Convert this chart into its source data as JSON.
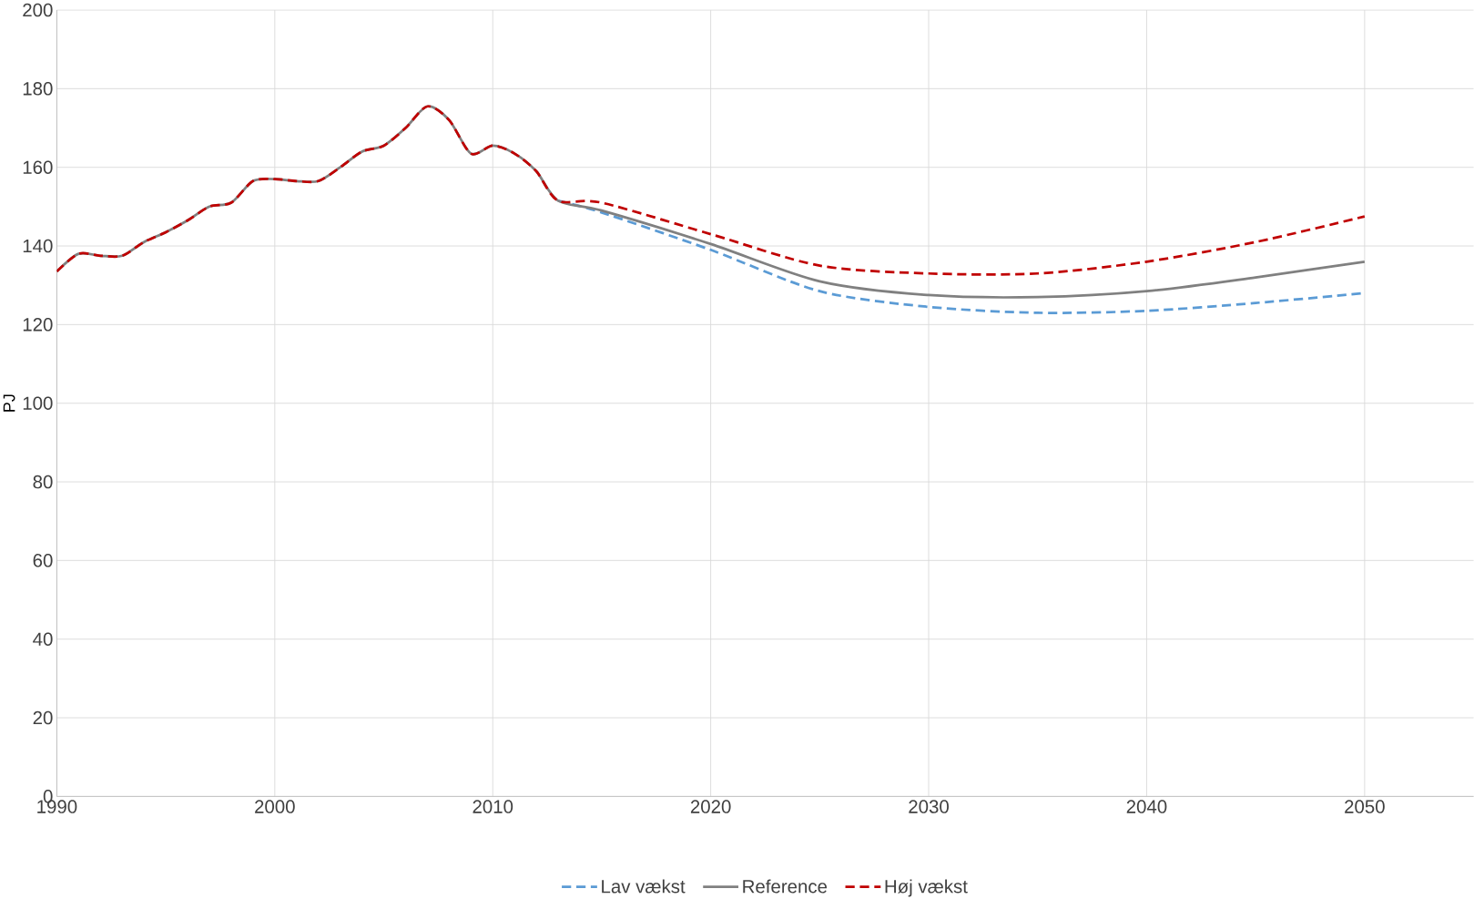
{
  "chart_data": {
    "type": "line",
    "ylabel": "PJ",
    "xlim": [
      1990,
      2055
    ],
    "xticks": [
      1990,
      2000,
      2010,
      2020,
      2030,
      2040,
      2050
    ],
    "ylim": [
      0,
      200
    ],
    "yticks": [
      0,
      20,
      40,
      60,
      80,
      100,
      120,
      140,
      160,
      180,
      200
    ],
    "grid": true,
    "legend": "bottom",
    "series": [
      {
        "name": "Lav vækst",
        "color": "#5b9bd5",
        "line_style": "dashed",
        "x": [
          2013,
          2015,
          2020,
          2025,
          2030,
          2035,
          2040,
          2045,
          2050
        ],
        "values": [
          151.5,
          148.5,
          139,
          128.5,
          124.5,
          123,
          123.5,
          125.5,
          128
        ]
      },
      {
        "name": "Reference",
        "color": "#808080",
        "line_style": "solid",
        "x": [
          1990,
          1991,
          1992,
          1993,
          1994,
          1995,
          1996,
          1997,
          1998,
          1999,
          2000,
          2001,
          2002,
          2003,
          2004,
          2005,
          2006,
          2007,
          2008,
          2009,
          2010,
          2011,
          2012,
          2013,
          2015,
          2020,
          2025,
          2030,
          2035,
          2040,
          2045,
          2050
        ],
        "values": [
          133.5,
          138,
          137.5,
          137.5,
          141,
          143.5,
          146.5,
          150,
          151,
          156.5,
          157,
          156.5,
          156.5,
          160,
          164,
          165.5,
          170,
          175.5,
          172,
          163.5,
          165.5,
          163.5,
          159,
          151.5,
          149,
          140.5,
          131,
          127.5,
          127,
          128.5,
          132,
          136
        ]
      },
      {
        "name": "Høj vækst",
        "color": "#c00000",
        "line_style": "dashed",
        "x": [
          1990,
          1991,
          1992,
          1993,
          1994,
          1995,
          1996,
          1997,
          1998,
          1999,
          2000,
          2001,
          2002,
          2003,
          2004,
          2005,
          2006,
          2007,
          2008,
          2009,
          2010,
          2011,
          2012,
          2013,
          2015,
          2020,
          2025,
          2030,
          2035,
          2040,
          2045,
          2050
        ],
        "values": [
          133.5,
          138,
          137.5,
          137.5,
          141,
          143.5,
          146.5,
          150,
          151,
          156.5,
          157,
          156.5,
          156.5,
          160,
          164,
          165.5,
          170,
          175.5,
          172,
          163.5,
          165.5,
          163.5,
          159,
          151.5,
          151,
          143,
          135,
          133,
          133,
          136,
          141,
          147.5
        ]
      }
    ]
  }
}
